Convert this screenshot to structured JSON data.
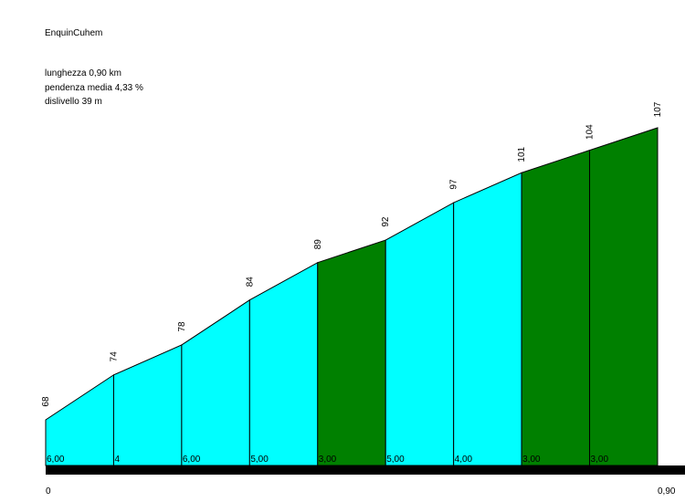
{
  "title": "EnquinCuhem",
  "stats": {
    "length": "lunghezza 0,90 km",
    "avg_grade": "pendenza media 4,33 %",
    "elevation_gain": "dislivello 39 m"
  },
  "chart_data": {
    "type": "area",
    "title": "EnquinCuhem",
    "x_start_label": "0",
    "x_end_label": "0,90",
    "distance_km": [
      0,
      0.1,
      0.2,
      0.3,
      0.4,
      0.5,
      0.6,
      0.7,
      0.8,
      0.9
    ],
    "altitude_m": [
      68,
      74,
      78,
      84,
      89,
      92,
      97,
      101,
      104,
      107
    ],
    "altitude_labels": [
      "68",
      "74",
      "78",
      "84",
      "89",
      "92",
      "97",
      "101",
      "104",
      "107"
    ],
    "segments": [
      {
        "grade_label": "6,00",
        "color": "#00ffff"
      },
      {
        "grade_label": "4",
        "color": "#00ffff"
      },
      {
        "grade_label": "6,00",
        "color": "#00ffff"
      },
      {
        "grade_label": "5,00",
        "color": "#00ffff"
      },
      {
        "grade_label": "3,00",
        "color": "#008000"
      },
      {
        "grade_label": "5,00",
        "color": "#00ffff"
      },
      {
        "grade_label": "4,00",
        "color": "#00ffff"
      },
      {
        "grade_label": "3,00",
        "color": "#008000"
      },
      {
        "grade_label": "3,00",
        "color": "#008000"
      }
    ],
    "ylim": [
      54,
      112
    ],
    "xlim": [
      0,
      0.9
    ]
  }
}
